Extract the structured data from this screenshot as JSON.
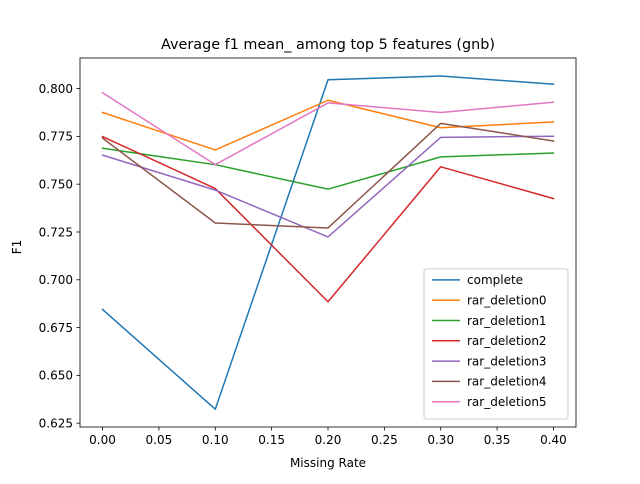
{
  "chart_data": {
    "type": "line",
    "title": "Average f1 mean_ among top 5 features (gnb)",
    "xlabel": "Missing Rate",
    "ylabel": "F1",
    "xlim": [
      -0.02,
      0.42
    ],
    "ylim": [
      0.623,
      0.816
    ],
    "x": [
      0.0,
      0.1,
      0.2,
      0.3,
      0.4
    ],
    "x_ticks": [
      0.0,
      0.05,
      0.1,
      0.15,
      0.2,
      0.25,
      0.3,
      0.35,
      0.4
    ],
    "x_tick_labels": [
      "0.00",
      "0.05",
      "0.10",
      "0.15",
      "0.20",
      "0.25",
      "0.30",
      "0.35",
      "0.40"
    ],
    "y_ticks": [
      0.625,
      0.65,
      0.675,
      0.7,
      0.725,
      0.75,
      0.775,
      0.8
    ],
    "y_tick_labels": [
      "0.625",
      "0.650",
      "0.675",
      "0.700",
      "0.725",
      "0.750",
      "0.775",
      "0.800"
    ],
    "grid": false,
    "legend_position": "lower-right",
    "series": [
      {
        "name": "complete",
        "color": "#1f77b4",
        "values": [
          0.6845,
          0.6323,
          0.8046,
          0.8066,
          0.8023
        ]
      },
      {
        "name": "rar_deletion0",
        "color": "#ff7f0e",
        "values": [
          0.7875,
          0.7679,
          0.7939,
          0.7795,
          0.7826
        ]
      },
      {
        "name": "rar_deletion1",
        "color": "#2ca02c",
        "values": [
          0.7688,
          0.7602,
          0.7474,
          0.7643,
          0.7663
        ]
      },
      {
        "name": "rar_deletion2",
        "color": "#d62728",
        "values": [
          0.7749,
          0.7477,
          0.6885,
          0.7591,
          0.7425
        ]
      },
      {
        "name": "rar_deletion3",
        "color": "#9467bd",
        "values": [
          0.7652,
          0.7469,
          0.7224,
          0.7745,
          0.7751
        ]
      },
      {
        "name": "rar_deletion4",
        "color": "#8c564b",
        "values": [
          0.7741,
          0.7297,
          0.7271,
          0.7818,
          0.7726
        ]
      },
      {
        "name": "rar_deletion5",
        "color": "#e377c2",
        "values": [
          0.7978,
          0.7602,
          0.7925,
          0.7875,
          0.7929
        ]
      }
    ]
  }
}
